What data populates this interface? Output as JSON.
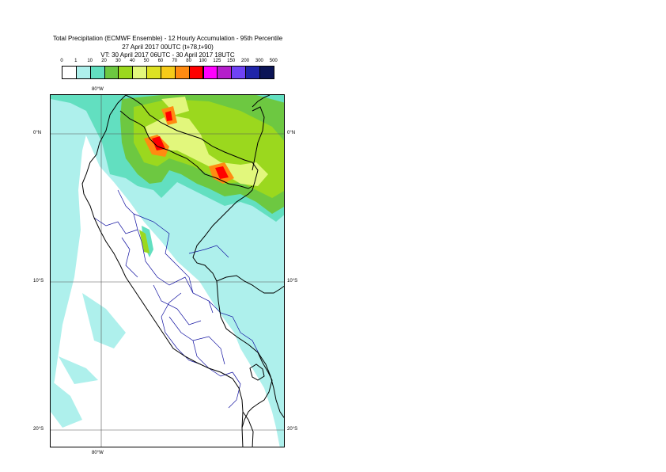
{
  "title": {
    "line1": "Total Precipitation (ECMWF Ensemble) - 12 Hourly Accumulation - 95th Percentile",
    "line2": "27 April 2017 00UTC (t+78,t+90)",
    "line3": "VT: 30 April 2017 06UTC - 30 April 2017 18UTC"
  },
  "colorbar": {
    "labels": [
      "0",
      "1",
      "10",
      "20",
      "30",
      "40",
      "50",
      "60",
      "70",
      "80",
      "100",
      "125",
      "150",
      "200",
      "300",
      "500"
    ],
    "colors": [
      "#ffffff",
      "#aef0ec",
      "#62dfc0",
      "#6dc841",
      "#9bd81e",
      "#e2f77c",
      "#dde123",
      "#f6cb19",
      "#ff8b11",
      "#ff0000",
      "#ff00ff",
      "#b51fcb",
      "#6f43f5",
      "#1f25a9",
      "#0b1456"
    ]
  },
  "map": {
    "lon_label_top": "80°W",
    "lon_label_bottom": "80°W",
    "lat_labels": [
      {
        "label": "0°N",
        "lat": 0
      },
      {
        "label": "10°S",
        "lat": -10
      },
      {
        "label": "20°S",
        "lat": -20
      }
    ],
    "colors": {
      "background": "#ffffff",
      "light_cyan": "#aef0ec",
      "teal": "#62dfc0",
      "green": "#6dc841",
      "yellow_green": "#9bd81e",
      "yellow": "#e2f77c",
      "orange": "#ff8b11",
      "red": "#ff0000",
      "country_border": "#000000",
      "province_border": "#1010a0",
      "graticule": "#555555"
    }
  }
}
